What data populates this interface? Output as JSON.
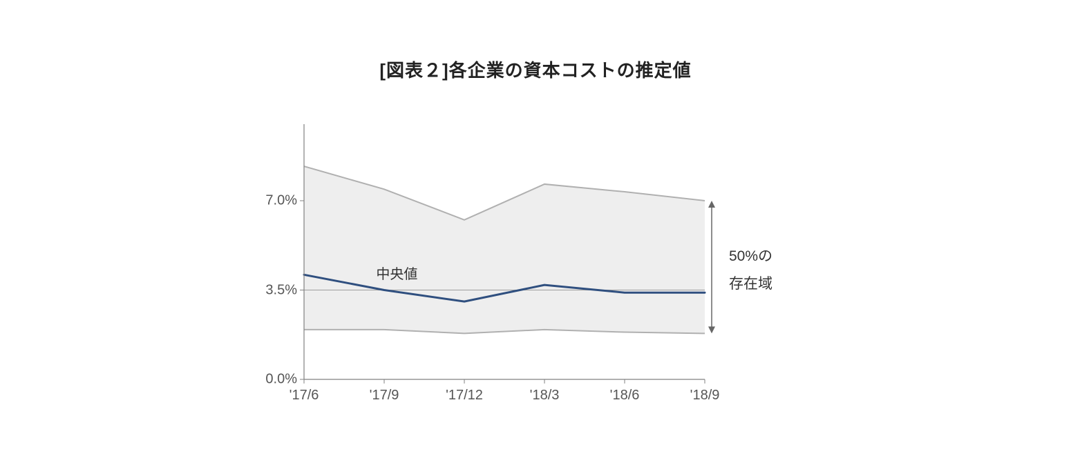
{
  "title": "[図表２]各企業の資本コストの推定値",
  "chart": {
    "type": "area-line",
    "background_color": "#ffffff",
    "plot_background": "#ffffff",
    "band_fill": "#eeeeee",
    "band_border": "#b0b0b0",
    "band_border_width": 2,
    "median_color": "#2f4f7f",
    "median_width": 3,
    "axis_color": "#808080",
    "midline_color": "#808080",
    "midline_width": 0.8,
    "tick_font_size": 20,
    "tick_color": "#555555",
    "x_labels": [
      "'17/6",
      "'17/9",
      "'17/12",
      "'18/3",
      "'18/6",
      "'18/9"
    ],
    "y_ticks": [
      0.0,
      3.5,
      7.0
    ],
    "y_tick_labels": [
      "0.0%",
      "3.5%",
      "7.0%"
    ],
    "y_min": 0.0,
    "y_max": 10.0,
    "x_positions": [
      0,
      1,
      2,
      3,
      4,
      5
    ],
    "band_upper": [
      8.35,
      7.45,
      6.25,
      7.65,
      7.35,
      7.0
    ],
    "band_lower": [
      1.95,
      1.95,
      1.8,
      1.95,
      1.85,
      1.8
    ],
    "median": [
      4.1,
      3.5,
      3.05,
      3.7,
      3.4,
      3.4
    ],
    "median_label": "中央値",
    "annotation": {
      "line1": "50%の",
      "line2": "存在域"
    },
    "arrow_color": "#666666"
  }
}
